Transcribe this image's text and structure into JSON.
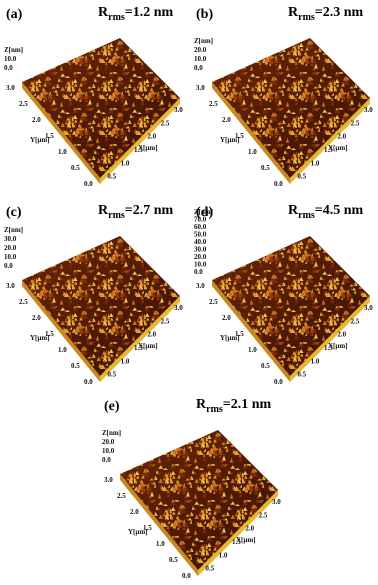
{
  "panels": [
    {
      "label": "(a)",
      "rms": {
        "symbol": "R",
        "subscript": "rms",
        "value": "=1.2 nm"
      },
      "z_label": "Z[nm]",
      "z_ticks": [
        "10.0",
        "0.0"
      ],
      "y_label": "Y[µm]",
      "y_ticks": [
        "3.0",
        "2.5",
        "2.0",
        "1.5",
        "1.0",
        "0.5",
        "0.0"
      ],
      "x_label": "X[µm]",
      "x_ticks": [
        "0.5",
        "1.0",
        "1.5",
        "2.0",
        "2.5",
        "3.0"
      ]
    },
    {
      "label": "(b)",
      "rms": {
        "symbol": "R",
        "subscript": "rms",
        "value": "=2.3 nm"
      },
      "z_label": "Z[nm]",
      "z_ticks": [
        "20.0",
        "10.0",
        "0.0"
      ],
      "y_label": "Y[µm]",
      "y_ticks": [
        "3.0",
        "2.5",
        "2.0",
        "1.5",
        "1.0",
        "0.5",
        "0.0"
      ],
      "x_label": "X[µm]",
      "x_ticks": [
        "0.5",
        "1.0",
        "1.5",
        "2.0",
        "2.5",
        "3.0"
      ]
    },
    {
      "label": "(c)",
      "rms": {
        "symbol": "R",
        "subscript": "rms",
        "value": "=2.7 nm"
      },
      "z_label": "Z[nm]",
      "z_ticks": [
        "30.0",
        "20.0",
        "10.0",
        "0.0"
      ],
      "y_label": "Y[µm]",
      "y_ticks": [
        "3.0",
        "2.5",
        "2.0",
        "1.5",
        "1.0",
        "0.5",
        "0.0"
      ],
      "x_label": "X[µm]",
      "x_ticks": [
        "0.5",
        "1.0",
        "1.5",
        "2.0",
        "2.5",
        "3.0"
      ]
    },
    {
      "label": "(d)",
      "rms": {
        "symbol": "R",
        "subscript": "rms",
        "value": "=4.5 nm"
      },
      "z_label": "Z[nm]",
      "z_ticks": [
        "70.0",
        "60.0",
        "50.0",
        "40.0",
        "30.0",
        "20.0",
        "10.0",
        "0.0"
      ],
      "y_label": "Y[µm]",
      "y_ticks": [
        "3.0",
        "2.5",
        "2.0",
        "1.5",
        "1.0",
        "0.5",
        "0.0"
      ],
      "x_label": "X[µm]",
      "x_ticks": [
        "0.5",
        "1.0",
        "1.5",
        "2.0",
        "2.5",
        "3.0"
      ]
    },
    {
      "label": "(e)",
      "rms": {
        "symbol": "R",
        "subscript": "rms",
        "value": "=2.1 nm"
      },
      "z_label": "Z[nm]",
      "z_ticks": [
        "20.0",
        "10.0",
        "0.0"
      ],
      "y_label": "Y[µm]",
      "y_ticks": [
        "3.0",
        "2.5",
        "2.0",
        "1.5",
        "1.0",
        "0.5",
        "0.0"
      ],
      "x_label": "X[µm]",
      "x_ticks": [
        "0.5",
        "1.0",
        "1.5",
        "2.0",
        "2.5",
        "3.0"
      ]
    }
  ]
}
